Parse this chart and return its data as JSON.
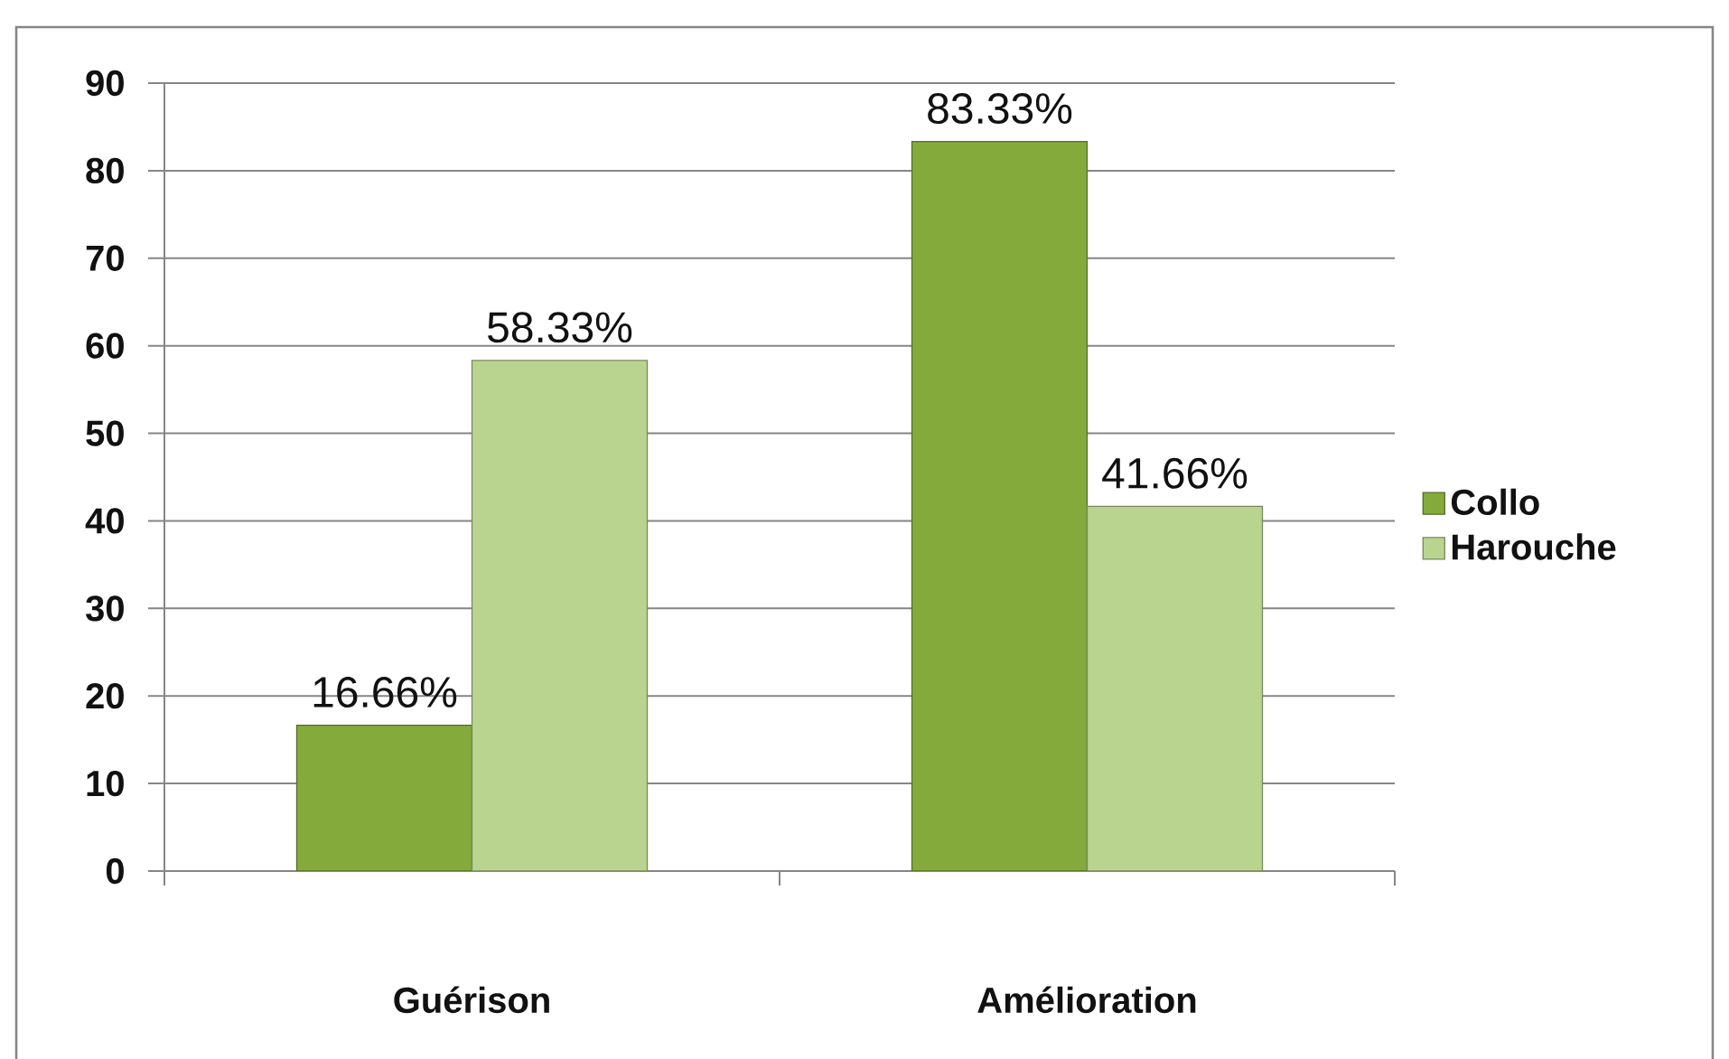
{
  "chart_data": {
    "type": "bar",
    "categories": [
      "Guérison",
      "Amélioration"
    ],
    "series": [
      {
        "name": "Collo",
        "color": "#84aa3c",
        "values": [
          16.66,
          83.33
        ],
        "value_labels": [
          "16.66%",
          "83.33%"
        ]
      },
      {
        "name": "Harouche",
        "color": "#b9d48f",
        "values": [
          58.33,
          41.66
        ],
        "value_labels": [
          "58.33%",
          "41.66%"
        ]
      }
    ],
    "ylim": [
      0,
      90
    ],
    "yticks": [
      0,
      10,
      20,
      30,
      40,
      50,
      60,
      70,
      80,
      90
    ],
    "grid": "y",
    "legend": "right"
  }
}
